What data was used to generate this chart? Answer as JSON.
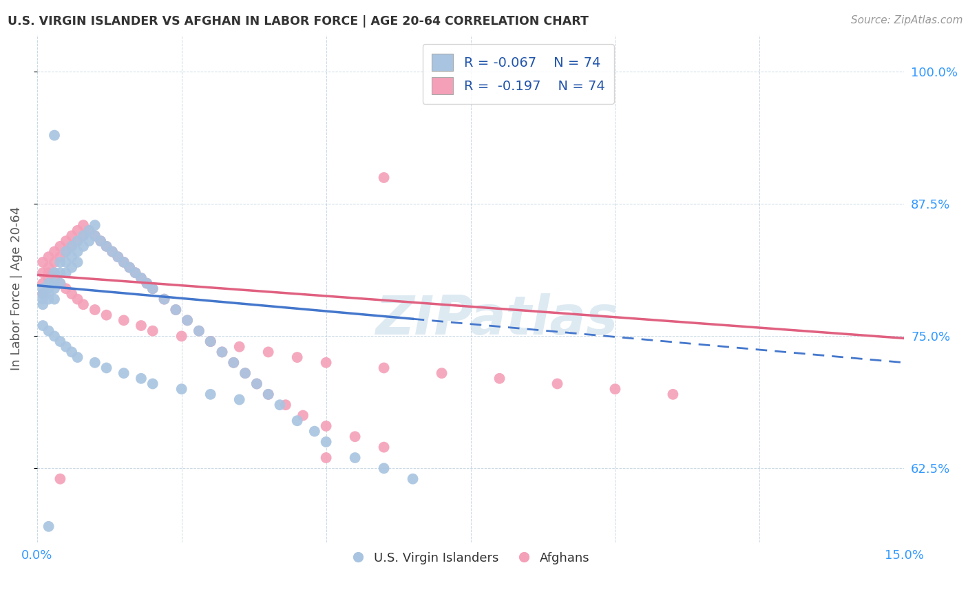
{
  "title": "U.S. VIRGIN ISLANDER VS AFGHAN IN LABOR FORCE | AGE 20-64 CORRELATION CHART",
  "source_text": "Source: ZipAtlas.com",
  "ylabel": "In Labor Force | Age 20-64",
  "xlim": [
    0.0,
    0.15
  ],
  "ylim": [
    0.555,
    1.035
  ],
  "ytick_labels": [
    "62.5%",
    "75.0%",
    "87.5%",
    "100.0%"
  ],
  "ytick_values": [
    0.625,
    0.75,
    0.875,
    1.0
  ],
  "color_vi": "#a8c4e0",
  "color_af": "#f4a0b8",
  "trendline_vi_color": "#4477cc",
  "trendline_af_color": "#e06080",
  "watermark": "ZIPatlas",
  "legend_r_vi": "-0.067",
  "legend_n_vi": "74",
  "legend_r_af": "-0.197",
  "legend_n_af": "74",
  "vi_x": [
    0.001,
    0.001,
    0.001,
    0.001,
    0.002,
    0.002,
    0.002,
    0.002,
    0.003,
    0.003,
    0.003,
    0.003,
    0.004,
    0.004,
    0.004,
    0.005,
    0.005,
    0.005,
    0.006,
    0.006,
    0.006,
    0.007,
    0.007,
    0.007,
    0.008,
    0.008,
    0.009,
    0.009,
    0.01,
    0.01,
    0.011,
    0.012,
    0.013,
    0.014,
    0.015,
    0.016,
    0.017,
    0.018,
    0.019,
    0.02,
    0.022,
    0.024,
    0.026,
    0.028,
    0.03,
    0.032,
    0.034,
    0.036,
    0.038,
    0.04,
    0.042,
    0.045,
    0.048,
    0.05,
    0.055,
    0.06,
    0.065,
    0.001,
    0.002,
    0.003,
    0.004,
    0.005,
    0.006,
    0.007,
    0.01,
    0.012,
    0.015,
    0.018,
    0.02,
    0.025,
    0.03,
    0.035,
    0.003,
    0.002
  ],
  "vi_y": [
    0.795,
    0.79,
    0.785,
    0.78,
    0.8,
    0.795,
    0.79,
    0.785,
    0.81,
    0.8,
    0.795,
    0.785,
    0.82,
    0.81,
    0.8,
    0.83,
    0.82,
    0.81,
    0.835,
    0.825,
    0.815,
    0.84,
    0.83,
    0.82,
    0.845,
    0.835,
    0.85,
    0.84,
    0.855,
    0.845,
    0.84,
    0.835,
    0.83,
    0.825,
    0.82,
    0.815,
    0.81,
    0.805,
    0.8,
    0.795,
    0.785,
    0.775,
    0.765,
    0.755,
    0.745,
    0.735,
    0.725,
    0.715,
    0.705,
    0.695,
    0.685,
    0.67,
    0.66,
    0.65,
    0.635,
    0.625,
    0.615,
    0.76,
    0.755,
    0.75,
    0.745,
    0.74,
    0.735,
    0.73,
    0.725,
    0.72,
    0.715,
    0.71,
    0.705,
    0.7,
    0.695,
    0.69,
    0.94,
    0.57
  ],
  "af_x": [
    0.001,
    0.001,
    0.001,
    0.001,
    0.002,
    0.002,
    0.002,
    0.003,
    0.003,
    0.003,
    0.004,
    0.004,
    0.005,
    0.005,
    0.006,
    0.006,
    0.007,
    0.007,
    0.008,
    0.008,
    0.009,
    0.01,
    0.011,
    0.012,
    0.013,
    0.014,
    0.015,
    0.016,
    0.017,
    0.018,
    0.019,
    0.02,
    0.022,
    0.024,
    0.026,
    0.028,
    0.03,
    0.032,
    0.034,
    0.036,
    0.038,
    0.04,
    0.043,
    0.046,
    0.05,
    0.055,
    0.06,
    0.002,
    0.003,
    0.004,
    0.005,
    0.006,
    0.007,
    0.008,
    0.01,
    0.012,
    0.015,
    0.018,
    0.02,
    0.025,
    0.03,
    0.035,
    0.04,
    0.045,
    0.05,
    0.06,
    0.07,
    0.08,
    0.09,
    0.1,
    0.11,
    0.06,
    0.05,
    0.004
  ],
  "af_y": [
    0.82,
    0.81,
    0.8,
    0.79,
    0.825,
    0.815,
    0.805,
    0.83,
    0.82,
    0.81,
    0.835,
    0.825,
    0.84,
    0.83,
    0.845,
    0.835,
    0.85,
    0.84,
    0.855,
    0.845,
    0.85,
    0.845,
    0.84,
    0.835,
    0.83,
    0.825,
    0.82,
    0.815,
    0.81,
    0.805,
    0.8,
    0.795,
    0.785,
    0.775,
    0.765,
    0.755,
    0.745,
    0.735,
    0.725,
    0.715,
    0.705,
    0.695,
    0.685,
    0.675,
    0.665,
    0.655,
    0.645,
    0.81,
    0.805,
    0.8,
    0.795,
    0.79,
    0.785,
    0.78,
    0.775,
    0.77,
    0.765,
    0.76,
    0.755,
    0.75,
    0.745,
    0.74,
    0.735,
    0.73,
    0.725,
    0.72,
    0.715,
    0.71,
    0.705,
    0.7,
    0.695,
    0.9,
    0.635,
    0.615
  ],
  "vi_trend_x0": 0.0,
  "vi_trend_y0": 0.798,
  "vi_trend_x1": 0.15,
  "vi_trend_y1": 0.725,
  "af_trend_x0": 0.0,
  "af_trend_y0": 0.808,
  "af_trend_x1": 0.15,
  "af_trend_y1": 0.748
}
